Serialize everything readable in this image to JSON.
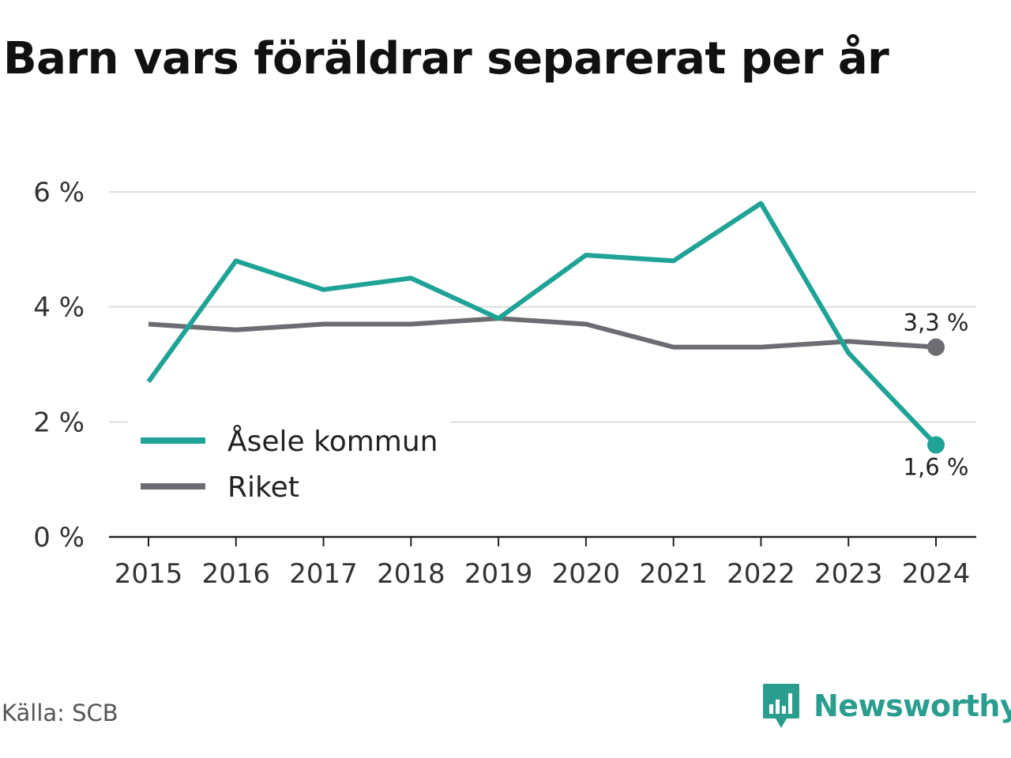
{
  "title": "Barn vars föräldrar separerat per år",
  "source": "Källa: SCB",
  "brand": {
    "name": "Newsworthy",
    "color": "#2a9d8f",
    "icon": "newsworthy-logo-icon"
  },
  "chart_data": {
    "type": "line",
    "title": "Barn vars föräldrar separerat per år",
    "x": [
      "2015",
      "2016",
      "2017",
      "2018",
      "2019",
      "2020",
      "2021",
      "2022",
      "2023",
      "2024"
    ],
    "ylim": [
      0,
      6
    ],
    "yticks": [
      0,
      2,
      4,
      6
    ],
    "ytick_labels": [
      "0 %",
      "2 %",
      "4 %",
      "6 %"
    ],
    "grid": true,
    "legend_position": "bottom-left",
    "series": [
      {
        "name": "Åsele kommun",
        "color": "#1fa396",
        "values": [
          2.7,
          4.8,
          4.3,
          4.5,
          3.8,
          4.9,
          4.8,
          5.8,
          3.2,
          1.6
        ],
        "end_label": "1,6 %"
      },
      {
        "name": "Riket",
        "color": "#6d6c72",
        "values": [
          3.7,
          3.6,
          3.7,
          3.7,
          3.8,
          3.7,
          3.3,
          3.3,
          3.4,
          3.3
        ],
        "end_label": "3,3 %"
      }
    ]
  }
}
